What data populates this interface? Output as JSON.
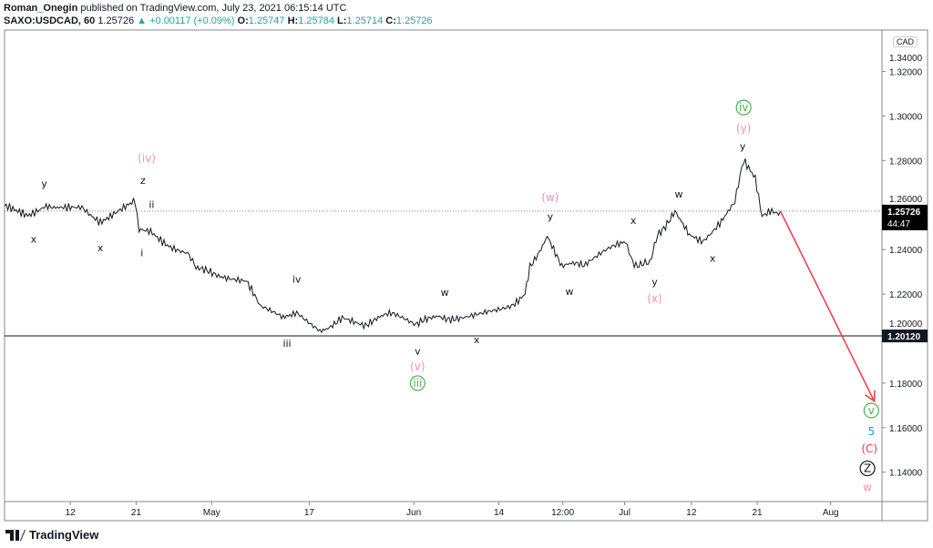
{
  "header": {
    "author": "Roman_Onegin",
    "published": "published on TradingView.com, July 23, 2021 06:15:14 UTC",
    "symbol": "SAXO:USDCAD, 60",
    "last": "1.25726",
    "change": "+0.00117 (+0.09%)",
    "o_label": "O:",
    "o": "1.25747",
    "h_label": "H:",
    "h": "1.25784",
    "l_label": "L:",
    "l": "1.25714",
    "c_label": "C:",
    "c": "1.25726"
  },
  "currency_badge": "CAD",
  "logo_text": "TradingView",
  "colors": {
    "line": "#131722",
    "pink": "#f48fb1",
    "green": "#4caf50",
    "blue": "#2196f3",
    "red": "#f23645",
    "arrow": "#f23645"
  },
  "chart_data": {
    "type": "line",
    "title": "SAXO:USDCAD, 60",
    "xlabel": "",
    "ylabel": "",
    "xlim": [
      -1.8,
      88.9
    ],
    "ylim": [
      1.1268,
      1.3386
    ],
    "y_ticks": [
      "1.14000",
      "1.16000",
      "1.18000",
      "1.20000",
      "1.22000",
      "1.24000",
      "1.26000",
      "1.28000",
      "1.30000",
      "1.32000",
      "1.34000"
    ],
    "x_ticks": [
      {
        "label": "12",
        "x": 5
      },
      {
        "label": "21",
        "x": 11.8
      },
      {
        "label": "May",
        "x": 19.6
      },
      {
        "label": "17",
        "x": 29.7
      },
      {
        "label": "Jun",
        "x": 40.5
      },
      {
        "label": "14",
        "x": 49.3
      },
      {
        "label": "12:00",
        "x": 55.9
      },
      {
        "label": "Jul",
        "x": 62.3
      },
      {
        "label": "12",
        "x": 69.2
      },
      {
        "label": "21",
        "x": 76
      },
      {
        "label": "Aug",
        "x": 83.6
      }
    ],
    "price_keypoints": [
      [
        -1.8,
        1.2587
      ],
      [
        0.6,
        1.2557
      ],
      [
        2.5,
        1.2613
      ],
      [
        4.3,
        1.2579
      ],
      [
        6.2,
        1.26
      ],
      [
        8.1,
        1.2536
      ],
      [
        10,
        1.257
      ],
      [
        11.7,
        1.2613
      ],
      [
        12.1,
        1.2485
      ],
      [
        13.3,
        1.2485
      ],
      [
        15.2,
        1.243
      ],
      [
        17.1,
        1.2387
      ],
      [
        18,
        1.2302
      ],
      [
        20.8,
        1.2289
      ],
      [
        23.2,
        1.226
      ],
      [
        24.6,
        1.2132
      ],
      [
        27,
        1.2089
      ],
      [
        28.4,
        1.2132
      ],
      [
        30.8,
        1.2047
      ],
      [
        33.1,
        1.2089
      ],
      [
        35.5,
        1.2068
      ],
      [
        38.3,
        1.2102
      ],
      [
        40.7,
        1.2047
      ],
      [
        43,
        1.2111
      ],
      [
        45.8,
        1.2089
      ],
      [
        48.2,
        1.2132
      ],
      [
        50.6,
        1.2162
      ],
      [
        52,
        1.2196
      ],
      [
        52.5,
        1.2323
      ],
      [
        54.3,
        1.2472
      ],
      [
        55.8,
        1.2323
      ],
      [
        58.1,
        1.2323
      ],
      [
        60.5,
        1.2387
      ],
      [
        62.4,
        1.243
      ],
      [
        63.3,
        1.2345
      ],
      [
        64.9,
        1.2323
      ],
      [
        65.7,
        1.2472
      ],
      [
        67.5,
        1.2579
      ],
      [
        69,
        1.2459
      ],
      [
        70.4,
        1.2451
      ],
      [
        72.3,
        1.2536
      ],
      [
        73.7,
        1.26
      ],
      [
        74.6,
        1.28
      ],
      [
        75.8,
        1.2728
      ],
      [
        76.5,
        1.2566
      ],
      [
        77.5,
        1.2587
      ],
      [
        78.4,
        1.25726
      ]
    ],
    "current_price": {
      "value": 1.25726,
      "label": "1.25726",
      "countdown": "44:47"
    },
    "horizontal_level": {
      "value": 1.2012,
      "label": "1.20120"
    },
    "projection_arrow": {
      "from": [
        78.4,
        1.25726
      ],
      "to": [
        88.1,
        1.1719
      ]
    },
    "wave_labels": [
      {
        "text": "y",
        "x": 2.3,
        "y": 1.2698,
        "color": "line"
      },
      {
        "text": "x",
        "x": 1.2,
        "y": 1.2447,
        "color": "line"
      },
      {
        "text": "x",
        "x": 8.1,
        "y": 1.2409,
        "color": "line"
      },
      {
        "text": "z",
        "x": 12.5,
        "y": 1.2711,
        "color": "line"
      },
      {
        "text": "(iv)",
        "x": 12.9,
        "y": 1.2809,
        "color": "pink"
      },
      {
        "text": "ii",
        "x": 13.4,
        "y": 1.2604,
        "color": "line"
      },
      {
        "text": "i",
        "x": 12.4,
        "y": 1.2387,
        "color": "line"
      },
      {
        "text": "iv",
        "x": 28.4,
        "y": 1.2268,
        "color": "line"
      },
      {
        "text": "iii",
        "x": 27.4,
        "y": 1.1979,
        "color": "line"
      },
      {
        "text": "v",
        "x": 40.9,
        "y": 1.1945,
        "color": "line"
      },
      {
        "text": "(v)",
        "x": 40.9,
        "y": 1.1894,
        "color": "pink"
      },
      {
        "text": "iii",
        "x": 40.9,
        "y": 1.1813,
        "color": "green",
        "circled": true
      },
      {
        "text": "w",
        "x": 43.7,
        "y": 1.2209,
        "color": "line"
      },
      {
        "text": "x",
        "x": 47,
        "y": 1.1996,
        "color": "line"
      },
      {
        "text": "(w)",
        "x": 54.6,
        "y": 1.2634,
        "color": "pink"
      },
      {
        "text": "y",
        "x": 54.6,
        "y": 1.2549,
        "color": "line"
      },
      {
        "text": "w",
        "x": 56.6,
        "y": 1.2213,
        "color": "line"
      },
      {
        "text": "x",
        "x": 63.2,
        "y": 1.2532,
        "color": "line"
      },
      {
        "text": "y",
        "x": 65.4,
        "y": 1.2255,
        "color": "line"
      },
      {
        "text": "(x)",
        "x": 65.4,
        "y": 1.2179,
        "color": "pink"
      },
      {
        "text": "w",
        "x": 67.9,
        "y": 1.2651,
        "color": "line"
      },
      {
        "text": "x",
        "x": 71.4,
        "y": 1.2362,
        "color": "line"
      },
      {
        "text": "iv",
        "x": 74.6,
        "y": 1.3038,
        "color": "green",
        "circled": true
      },
      {
        "text": "(y)",
        "x": 74.6,
        "y": 1.2945,
        "color": "pink"
      },
      {
        "text": "y",
        "x": 74.5,
        "y": 1.2864,
        "color": "line"
      },
      {
        "text": "v",
        "x": 87.8,
        "y": 1.1677,
        "color": "green",
        "circled": true
      },
      {
        "text": "5",
        "x": 87.8,
        "y": 1.1583,
        "color": "blue"
      },
      {
        "text": "(C)",
        "x": 87.6,
        "y": 1.1506,
        "color": "red"
      },
      {
        "text": "Z",
        "x": 87.4,
        "y": 1.1417,
        "color": "line",
        "circled": true
      },
      {
        "text": "w",
        "x": 87.4,
        "y": 1.1332,
        "color": "pink"
      }
    ]
  }
}
